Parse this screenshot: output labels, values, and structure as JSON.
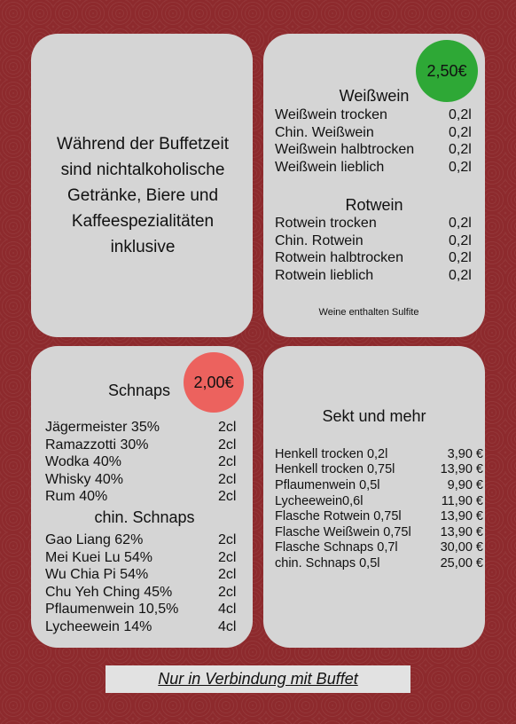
{
  "intro": {
    "lines": [
      "Während der Buffetzeit",
      "sind nichtalkoholische",
      "Getränke, Biere und",
      "Kaffeespezialitäten",
      "inklusive"
    ]
  },
  "wine": {
    "price": "2,50€",
    "sections": [
      {
        "title": "Weißwein",
        "items": [
          {
            "name": "Weißwein trocken",
            "size": "0,2l"
          },
          {
            "name": "Chin. Weißwein",
            "size": "0,2l"
          },
          {
            "name": "Weißwein halbtrocken",
            "size": "0,2l"
          },
          {
            "name": "Weißwein lieblich",
            "size": "0,2l"
          }
        ]
      },
      {
        "title": "Rotwein",
        "items": [
          {
            "name": "Rotwein trocken",
            "size": "0,2l"
          },
          {
            "name": "Chin. Rotwein",
            "size": "0,2l"
          },
          {
            "name": "Rotwein halbtrocken",
            "size": "0,2l"
          },
          {
            "name": "Rotwein lieblich",
            "size": "0,2l"
          }
        ]
      }
    ],
    "note": "Weine enthalten Sulfite"
  },
  "schnaps": {
    "title": "Schnaps",
    "price": "2,00€",
    "items": [
      {
        "name": "Jägermeister 35%",
        "size": "2cl"
      },
      {
        "name": "Ramazzotti 30%",
        "size": "2cl"
      },
      {
        "name": "Wodka 40%",
        "size": "2cl"
      },
      {
        "name": "Whisky 40%",
        "size": "2cl"
      },
      {
        "name": "Rum 40%",
        "size": "2cl"
      }
    ],
    "subtitle": "chin. Schnaps",
    "chinese_items": [
      {
        "name": "Gao Liang 62%",
        "size": "2cl"
      },
      {
        "name": "Mei Kuei Lu 54%",
        "size": "2cl"
      },
      {
        "name": "Wu Chia Pi 54%",
        "size": "2cl"
      },
      {
        "name": "Chu Yeh Ching 45%",
        "size": "2cl"
      },
      {
        "name": "Pflaumenwein 10,5%",
        "size": "4cl"
      },
      {
        "name": "Lycheewein 14%",
        "size": "4cl"
      }
    ]
  },
  "sekt": {
    "title": "Sekt und mehr",
    "items": [
      {
        "name": "Henkell trocken 0,2l",
        "price": "3,90 €"
      },
      {
        "name": "Henkell trocken 0,75l",
        "price": "13,90 €"
      },
      {
        "name": "Pflaumenwein 0,5l",
        "price": "9,90 €"
      },
      {
        "name": "Lycheewein0,6l",
        "price": "11,90 €"
      },
      {
        "name": "Flasche Rotwein 0,75l",
        "price": "13,90 €"
      },
      {
        "name": "Flasche Weißwein 0,75l",
        "price": "13,90 €"
      },
      {
        "name": "Flasche Schnaps 0,7l",
        "price": "30,00 €"
      },
      {
        "name": "chin. Schnaps 0,5l",
        "price": "25,00 €"
      }
    ]
  },
  "footer": "Nur in Verbindung mit Buffet"
}
